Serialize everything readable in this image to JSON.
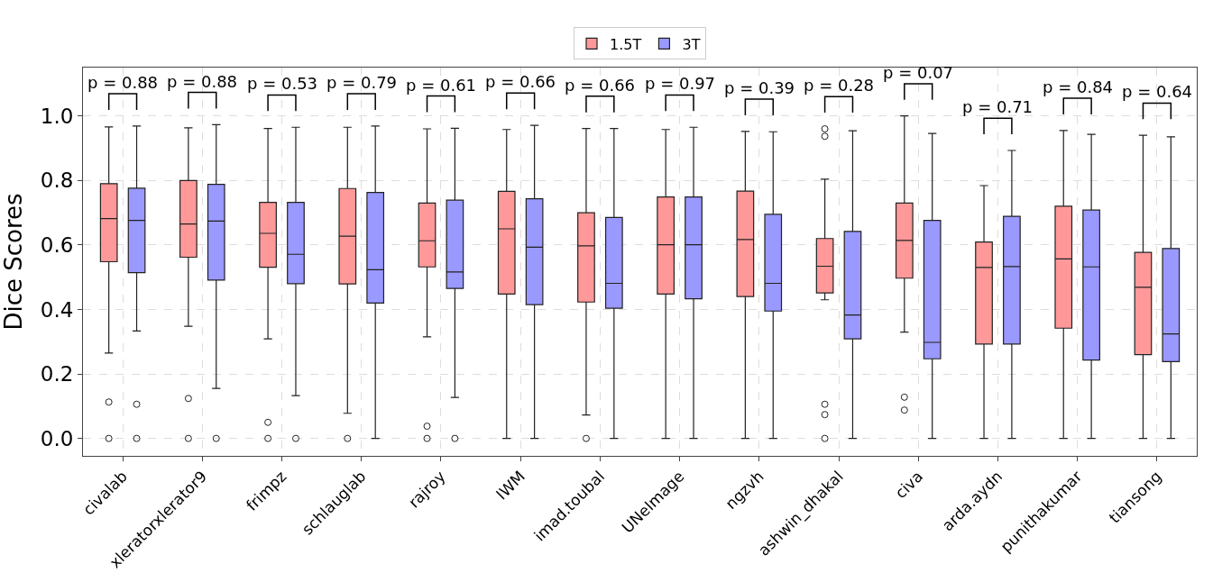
{
  "chart_data": {
    "type": "box",
    "ylabel": "Dice Scores",
    "categories": [
      "civalab",
      "xleratorxlerator9",
      "frimpz",
      "schlauglab",
      "rajroy",
      "IWM",
      "imad.toubal",
      "UNeImage",
      "ngzvh",
      "ashwin_dhakal",
      "civa",
      "arda.aydn",
      "punithakumar",
      "tiansong"
    ],
    "series": [
      {
        "name": "1.5T",
        "color": "#ff9999",
        "boxes": [
          {
            "low": 0.265,
            "q1": 0.548,
            "median": 0.682,
            "q3": 0.79,
            "high": 0.966,
            "outliers": [
              0,
              0.113
            ]
          },
          {
            "low": 0.348,
            "q1": 0.562,
            "median": 0.665,
            "q3": 0.8,
            "high": 0.963,
            "outliers": [
              0,
              0.124
            ]
          },
          {
            "low": 0.309,
            "q1": 0.531,
            "median": 0.636,
            "q3": 0.732,
            "high": 0.961,
            "outliers": [
              0,
              0.05
            ]
          },
          {
            "low": 0.078,
            "q1": 0.479,
            "median": 0.627,
            "q3": 0.775,
            "high": 0.965,
            "outliers": [
              0
            ]
          },
          {
            "low": 0.315,
            "q1": 0.532,
            "median": 0.613,
            "q3": 0.73,
            "high": 0.96,
            "outliers": [
              0,
              0.038
            ]
          },
          {
            "low": 0,
            "q1": 0.448,
            "median": 0.65,
            "q3": 0.766,
            "high": 0.958
          },
          {
            "low": 0.073,
            "q1": 0.423,
            "median": 0.597,
            "q3": 0.7,
            "high": 0.961,
            "outliers": [
              0
            ]
          },
          {
            "low": 0,
            "q1": 0.448,
            "median": 0.601,
            "q3": 0.749,
            "high": 0.958
          },
          {
            "low": 0,
            "q1": 0.44,
            "median": 0.617,
            "q3": 0.767,
            "high": 0.952
          },
          {
            "low": 0.43,
            "q1": 0.451,
            "median": 0.534,
            "q3": 0.62,
            "high": 0.804,
            "outliers": [
              0,
              0.074,
              0.106,
              0.937,
              0.96
            ]
          },
          {
            "low": 0.33,
            "q1": 0.497,
            "median": 0.614,
            "q3": 0.73,
            "high": 1.0,
            "outliers": [
              0.088,
              0.128
            ]
          },
          {
            "low": 0,
            "q1": 0.293,
            "median": 0.53,
            "q3": 0.609,
            "high": 0.784
          },
          {
            "low": 0,
            "q1": 0.342,
            "median": 0.557,
            "q3": 0.72,
            "high": 0.955
          },
          {
            "low": 0,
            "q1": 0.26,
            "median": 0.469,
            "q3": 0.577,
            "high": 0.94
          }
        ]
      },
      {
        "name": "3T",
        "color": "#9999ff",
        "boxes": [
          {
            "low": 0.333,
            "q1": 0.514,
            "median": 0.676,
            "q3": 0.776,
            "high": 0.969,
            "outliers": [
              0,
              0.106
            ]
          },
          {
            "low": 0.155,
            "q1": 0.491,
            "median": 0.674,
            "q3": 0.788,
            "high": 0.973,
            "outliers": [
              0
            ]
          },
          {
            "low": 0.133,
            "q1": 0.48,
            "median": 0.571,
            "q3": 0.732,
            "high": 0.965,
            "outliers": [
              0
            ]
          },
          {
            "low": 0,
            "q1": 0.42,
            "median": 0.523,
            "q3": 0.763,
            "high": 0.969
          },
          {
            "low": 0.127,
            "q1": 0.465,
            "median": 0.516,
            "q3": 0.739,
            "high": 0.962,
            "outliers": [
              0
            ]
          },
          {
            "low": 0,
            "q1": 0.415,
            "median": 0.593,
            "q3": 0.743,
            "high": 0.971
          },
          {
            "low": 0,
            "q1": 0.404,
            "median": 0.481,
            "q3": 0.685,
            "high": 0.961
          },
          {
            "low": 0,
            "q1": 0.433,
            "median": 0.601,
            "q3": 0.749,
            "high": 0.965
          },
          {
            "low": 0,
            "q1": 0.395,
            "median": 0.481,
            "q3": 0.695,
            "high": 0.951
          },
          {
            "low": 0,
            "q1": 0.309,
            "median": 0.383,
            "q3": 0.642,
            "high": 0.954
          },
          {
            "low": 0,
            "q1": 0.247,
            "median": 0.298,
            "q3": 0.676,
            "high": 0.946
          },
          {
            "low": 0,
            "q1": 0.293,
            "median": 0.533,
            "q3": 0.689,
            "high": 0.893
          },
          {
            "low": 0,
            "q1": 0.243,
            "median": 0.532,
            "q3": 0.708,
            "high": 0.943
          },
          {
            "low": 0,
            "q1": 0.238,
            "median": 0.324,
            "q3": 0.589,
            "high": 0.935
          }
        ]
      }
    ],
    "annotations": [
      "p = 0.88",
      "p = 0.88",
      "p = 0.53",
      "p = 0.79",
      "p = 0.61",
      "p = 0.66",
      "p = 0.66",
      "p = 0.97",
      "p = 0.39",
      "p = 0.28",
      "p = 0.07",
      "p = 0.71",
      "p = 0.84",
      "p = 0.64"
    ],
    "ylim": [
      -0.054,
      1.15
    ],
    "yticks": [
      {
        "value": 0,
        "label": "0.0"
      },
      0.2,
      0.4,
      0.6,
      0.8,
      {
        "value": 1,
        "label": "1.0"
      }
    ],
    "grid": true,
    "legend": "top"
  }
}
